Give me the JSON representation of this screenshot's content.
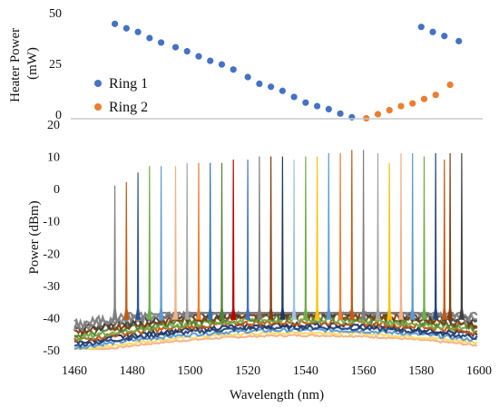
{
  "chart_data": [
    {
      "type": "scatter",
      "title": "",
      "xlabel": "",
      "ylabel": "Heater Power (mW)",
      "ylabel_lines": [
        "Heater Power",
        "(mW)"
      ],
      "xlim": [
        1460,
        1600
      ],
      "ylim": [
        0,
        50
      ],
      "yticks": [
        0,
        25,
        50
      ],
      "grid": false,
      "legend_position": "middle-left",
      "series": [
        {
          "name": "Ring 1",
          "color": "#4472C4",
          "x": [
            1474,
            1478,
            1482,
            1486,
            1490,
            1495,
            1499,
            1503,
            1507,
            1511,
            1515,
            1520,
            1524,
            1528,
            1532,
            1536,
            1540,
            1544,
            1548,
            1552,
            1556,
            1580,
            1584,
            1588,
            1593
          ],
          "y": [
            44.5,
            42.3,
            40.5,
            37.5,
            35.3,
            33,
            31,
            28.5,
            26.3,
            24.5,
            22,
            18.3,
            15,
            13.5,
            11.5,
            8.5,
            5.7,
            4,
            2.5,
            0.3,
            -1.5,
            43,
            40.5,
            38.5,
            36
          ]
        },
        {
          "name": "Ring 2",
          "color": "#ED7D31",
          "x": [
            1561,
            1565,
            1569,
            1573,
            1577,
            1581,
            1585,
            1590
          ],
          "y": [
            -2,
            0,
            2,
            4,
            5.3,
            7.5,
            9.5,
            14.5
          ]
        }
      ]
    },
    {
      "type": "line",
      "title": "",
      "xlabel": "Wavelength (nm)",
      "ylabel": "Power (dBm)",
      "xlim": [
        1460,
        1600
      ],
      "ylim": [
        -50,
        20
      ],
      "xticks": [
        1460,
        1480,
        1500,
        1520,
        1540,
        1560,
        1580,
        1600
      ],
      "yticks": [
        -50,
        -40,
        -30,
        -20,
        -10,
        0,
        10,
        20
      ],
      "grid": false,
      "noise_floor_dBm": [
        -50,
        -40
      ],
      "peaks": {
        "wavelength": [
          1474,
          1478,
          1482,
          1486,
          1490,
          1495,
          1499,
          1503,
          1507,
          1511,
          1515,
          1520,
          1524,
          1528,
          1532,
          1536,
          1540,
          1544,
          1548,
          1552,
          1556,
          1560,
          1565,
          1569,
          1573,
          1577,
          1581,
          1585,
          1588,
          1590,
          1594
        ],
        "power_dBm": [
          1,
          2,
          5,
          7,
          7,
          7,
          8,
          8,
          8,
          8,
          9,
          9,
          10,
          10,
          10,
          9,
          10,
          10,
          11,
          11,
          12,
          12,
          11,
          8,
          11,
          11,
          10,
          11,
          9,
          11,
          11
        ],
        "colors": [
          "#7f7f7f",
          "#c55a11",
          "#2f5597",
          "#70ad47",
          "#5b9bd5",
          "#f4b183",
          "#a5a5a5",
          "#ed7d31",
          "#2e75b6",
          "#548235",
          "#c00000",
          "#4472c4",
          "#7f7f7f",
          "#843c0c",
          "#1f3864",
          "#9dc3e6",
          "#70ad47",
          "#ffc000",
          "#5b9bd5",
          "#ed7d31",
          "#c55a11",
          "#7f7f7f",
          "#a5a5a5",
          "#ffc000",
          "#f4b183",
          "#5b9bd5",
          "#70ad47",
          "#264478",
          "#c55a11",
          "#843c0c",
          "#404040"
        ]
      }
    }
  ]
}
